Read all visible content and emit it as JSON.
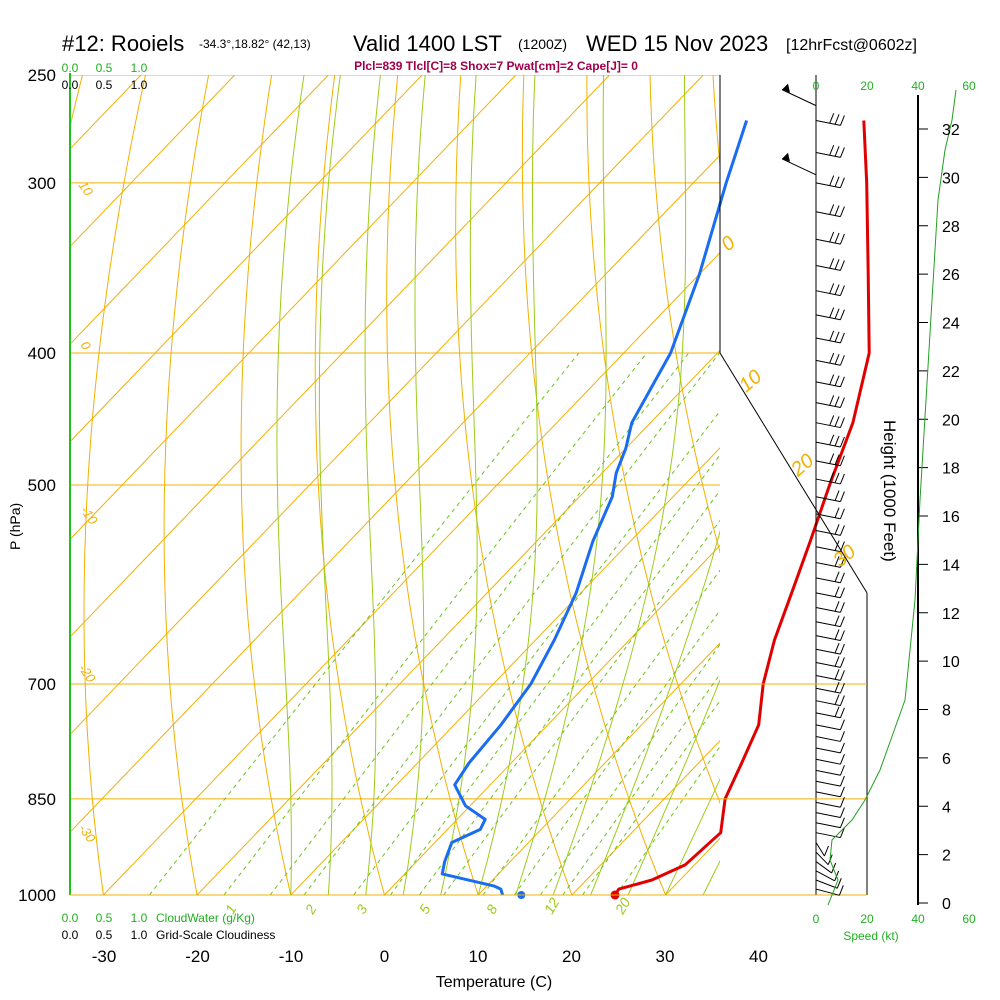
{
  "header": {
    "title_main": "#12: Rooiels",
    "coords": "-34.3°,18.82° (42,13)",
    "valid": "Valid 1400 LST",
    "zulu": "(1200Z)",
    "date": "WED 15 Nov 2023",
    "forecast": "[12hrFcst@0602z]",
    "indices": "Plcl=839 Tlcl[C]=8 Shox=7 Pwat[cm]=2 Cape[J]= 0"
  },
  "cloud_scale": {
    "ticks": [
      "0.0",
      "0.5",
      "1.0"
    ],
    "cloudwater_label": "CloudWater (g/Kg)",
    "cloudiness_label": "Grid-Scale Cloudiness"
  },
  "colors": {
    "isotherm": "#f2b000",
    "dry_adiabat": "#f2b000",
    "moist_adiabat": "#9ccc1a",
    "mixing_ratio": "#6cc21a",
    "temperature": "#e00000",
    "dewpoint": "#1a6cf0",
    "title_red": "#a0004a",
    "green_text": "#20b020",
    "height_line": "#20a020"
  },
  "chart_data": [
    {
      "type": "line",
      "chart_kind": "skew-T log-P sounding",
      "xlabel": "Temperature (C)",
      "ylabel": "P (hPa)",
      "x_ticks": [
        "-30",
        "-20",
        "-10",
        "0",
        "10",
        "20",
        "30",
        "40"
      ],
      "pressure_levels": [
        250,
        300,
        400,
        500,
        700,
        850,
        1000
      ],
      "pressure_labels": [
        "250",
        "300",
        "400",
        "500",
        "700",
        "850",
        "1000"
      ],
      "dry_adiabat_labels": [
        "10",
        "0",
        "-10",
        "-20",
        "-30"
      ],
      "moist_adiabat_labels": [
        "0",
        "10",
        "20",
        "30"
      ],
      "mixing_ratio_labels": [
        "1",
        "2",
        "3",
        "5",
        "8",
        "12",
        "20"
      ],
      "series": [
        {
          "name": "Temperature",
          "points": [
            [
              1000,
              24.6
            ],
            [
              990,
              24.4
            ],
            [
              975,
              27
            ],
            [
              950,
              29
            ],
            [
              900,
              29.5
            ],
            [
              850,
              26.5
            ],
            [
              800,
              24.6
            ],
            [
              750,
              22.5
            ],
            [
              700,
              18.8
            ],
            [
              650,
              15.5
            ],
            [
              600,
              12.5
            ],
            [
              550,
              9.2
            ],
            [
              500,
              5.5
            ],
            [
              450,
              1.6
            ],
            [
              400,
              -3.8
            ],
            [
              350,
              -12
            ],
            [
              300,
              -21.5
            ],
            [
              270,
              -28.2
            ]
          ]
        },
        {
          "name": "Dewpoint",
          "points": [
            [
              1000,
              12.6
            ],
            [
              990,
              11.8
            ],
            [
              985,
              10.8
            ],
            [
              965,
              4
            ],
            [
              945,
              3
            ],
            [
              915,
              1.8
            ],
            [
              895,
              3.5
            ],
            [
              880,
              3
            ],
            [
              860,
              -0.5
            ],
            [
              830,
              -3.8
            ],
            [
              800,
              -4.5
            ],
            [
              750,
              -5
            ],
            [
              700,
              -6
            ],
            [
              650,
              -8
            ],
            [
              600,
              -10.5
            ],
            [
              550,
              -14
            ],
            [
              510,
              -16.5
            ],
            [
              490,
              -18.5
            ],
            [
              470,
              -20
            ],
            [
              450,
              -22
            ],
            [
              400,
              -25
            ],
            [
              350,
              -30
            ],
            [
              300,
              -36.5
            ],
            [
              270,
              -40.7
            ]
          ]
        },
        {
          "name": "Parcel points",
          "points": [
            [
              1000,
              24.6
            ],
            [
              1000,
              14.6
            ]
          ]
        }
      ]
    },
    {
      "type": "line",
      "chart_kind": "height axis",
      "ylabel": "Height (1000 Feet)",
      "ticks": [
        "0",
        "2",
        "4",
        "6",
        "8",
        "10",
        "12",
        "14",
        "16",
        "18",
        "20",
        "22",
        "24",
        "26",
        "28",
        "30",
        "32"
      ],
      "speed_ticks": [
        "0",
        "20",
        "40",
        "60"
      ],
      "speed_label": "Speed (kt)"
    }
  ]
}
